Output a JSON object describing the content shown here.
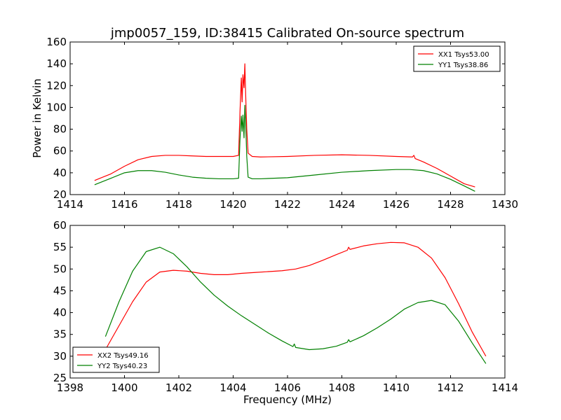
{
  "chart_data": [
    {
      "type": "line",
      "title": "jmp0057_159, ID:38415 Calibrated On-source spectrum",
      "xlabel": "",
      "ylabel": "Power in Kelvin",
      "xlim": [
        1414,
        1430
      ],
      "ylim": [
        20,
        160
      ],
      "xticks": [
        "1414",
        "1416",
        "1418",
        "1420",
        "1422",
        "1424",
        "1426",
        "1428",
        "1430"
      ],
      "yticks": [
        "20",
        "40",
        "60",
        "80",
        "100",
        "120",
        "140",
        "160"
      ],
      "legend_position": "top-right",
      "series": [
        {
          "name": "XX1 Tsys53.00",
          "color": "#ff0000",
          "x": [
            1414.9,
            1415.5,
            1416.0,
            1416.5,
            1417.0,
            1417.5,
            1418.0,
            1418.5,
            1419.0,
            1419.5,
            1420.0,
            1420.2,
            1420.25,
            1420.3,
            1420.33,
            1420.36,
            1420.4,
            1420.43,
            1420.46,
            1420.5,
            1420.55,
            1420.7,
            1421.0,
            1422.0,
            1423.0,
            1424.0,
            1425.0,
            1426.0,
            1426.6,
            1426.65,
            1426.7,
            1427.0,
            1427.5,
            1428.0,
            1428.5,
            1428.9
          ],
          "y": [
            33,
            39,
            46,
            52,
            55,
            56,
            56,
            55.5,
            55,
            55,
            55,
            56,
            95,
            127,
            105,
            130,
            118,
            140,
            112,
            80,
            58,
            55,
            54.5,
            55,
            56,
            56.5,
            56,
            55,
            54.5,
            56,
            53,
            50,
            44,
            37,
            30,
            27
          ]
        },
        {
          "name": "YY1 Tsys38.86",
          "color": "#008000",
          "x": [
            1414.9,
            1415.5,
            1416.0,
            1416.5,
            1417.0,
            1417.5,
            1418.0,
            1418.5,
            1419.0,
            1419.5,
            1420.0,
            1420.2,
            1420.25,
            1420.3,
            1420.33,
            1420.36,
            1420.4,
            1420.43,
            1420.46,
            1420.5,
            1420.55,
            1420.7,
            1421.0,
            1422.0,
            1423.0,
            1424.0,
            1425.0,
            1426.0,
            1426.5,
            1427.0,
            1427.5,
            1428.0,
            1428.5,
            1428.9
          ],
          "y": [
            29,
            35,
            40,
            42,
            42,
            40.5,
            38,
            36,
            35,
            34.5,
            34.5,
            35,
            70,
            92,
            78,
            93,
            72,
            102,
            85,
            55,
            36,
            34.5,
            34.5,
            35.5,
            38,
            40.5,
            42,
            43,
            43,
            42,
            39,
            34,
            28,
            23
          ]
        }
      ]
    },
    {
      "type": "line",
      "title": "",
      "xlabel": "Frequency (MHz)",
      "ylabel": "",
      "xlim": [
        1398,
        1414
      ],
      "ylim": [
        25,
        60
      ],
      "xticks": [
        "1398",
        "1400",
        "1402",
        "1404",
        "1406",
        "1408",
        "1410",
        "1412",
        "1414"
      ],
      "yticks": [
        "25",
        "30",
        "35",
        "40",
        "45",
        "50",
        "55",
        "60"
      ],
      "legend_position": "bottom-left",
      "series": [
        {
          "name": "XX2 Tsys49.16",
          "color": "#ff0000",
          "x": [
            1399.3,
            1399.8,
            1400.3,
            1400.8,
            1401.3,
            1401.8,
            1402.3,
            1402.8,
            1403.3,
            1403.8,
            1404.3,
            1404.8,
            1405.3,
            1405.8,
            1406.3,
            1406.8,
            1407.3,
            1407.8,
            1408.2,
            1408.25,
            1408.3,
            1408.8,
            1409.3,
            1409.8,
            1410.3,
            1410.8,
            1411.3,
            1411.8,
            1412.3,
            1412.8,
            1413.3
          ],
          "y": [
            31.5,
            37,
            42.5,
            47,
            49.3,
            49.7,
            49.5,
            49,
            48.7,
            48.7,
            49,
            49.2,
            49.4,
            49.6,
            50,
            50.8,
            52,
            53.3,
            54.3,
            55,
            54.5,
            55.3,
            55.8,
            56.1,
            56,
            55,
            52.5,
            48,
            42,
            35.5,
            30
          ]
        },
        {
          "name": "YY2 Tsys40.23",
          "color": "#008000",
          "x": [
            1399.3,
            1399.8,
            1400.3,
            1400.8,
            1401.3,
            1401.8,
            1402.3,
            1402.8,
            1403.3,
            1403.8,
            1404.3,
            1404.8,
            1405.3,
            1405.8,
            1406.2,
            1406.25,
            1406.3,
            1406.8,
            1407.3,
            1407.8,
            1408.2,
            1408.25,
            1408.3,
            1408.8,
            1409.3,
            1409.8,
            1410.3,
            1410.8,
            1411.3,
            1411.8,
            1412.3,
            1412.8,
            1413.3
          ],
          "y": [
            34.5,
            42.5,
            49.5,
            54,
            55,
            53.5,
            50.5,
            47,
            44,
            41.5,
            39.3,
            37.3,
            35.3,
            33.5,
            32.2,
            32.8,
            32,
            31.5,
            31.7,
            32.3,
            33.2,
            33.8,
            33.3,
            34.7,
            36.5,
            38.5,
            40.8,
            42.3,
            42.8,
            41.8,
            38,
            33,
            28.3
          ]
        }
      ]
    }
  ]
}
